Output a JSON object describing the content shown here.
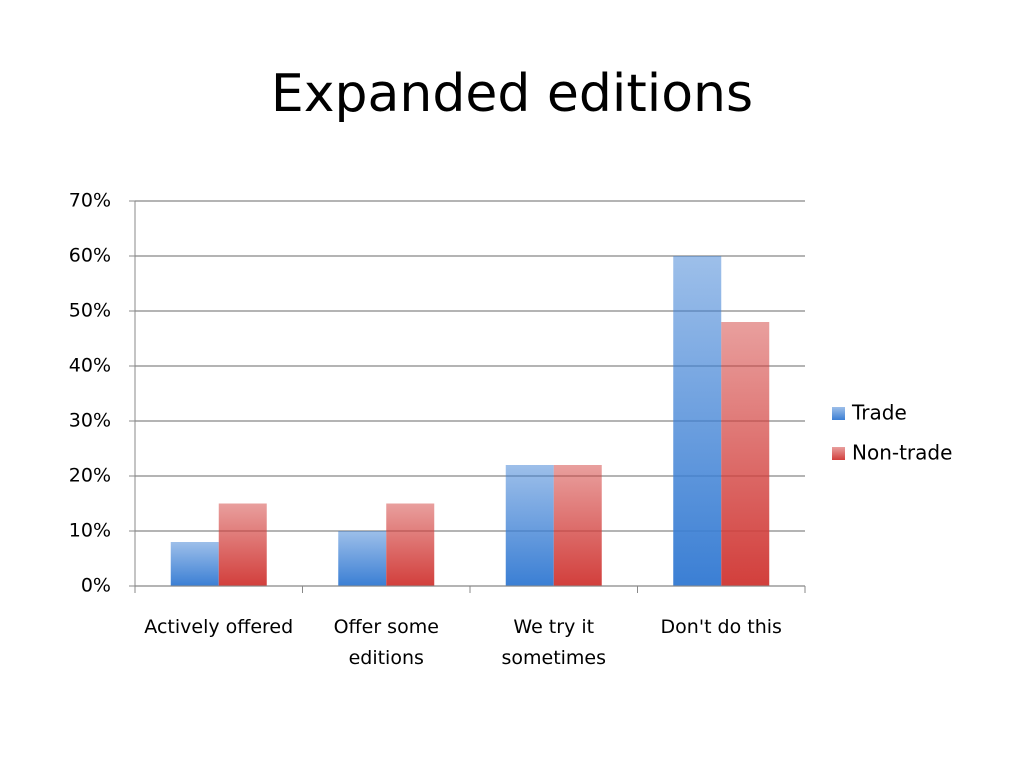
{
  "chart_data": {
    "type": "bar",
    "title": "Expanded editions",
    "categories": [
      "Actively offered",
      "Offer some editions",
      "We try it sometimes",
      "Don't do this"
    ],
    "series": [
      {
        "name": "Trade",
        "color": "#3b7fd4",
        "values": [
          8,
          10,
          22,
          60
        ]
      },
      {
        "name": "Non-trade",
        "color": "#d23f3c",
        "values": [
          15,
          15,
          22,
          48
        ]
      }
    ],
    "ylim": [
      0,
      70
    ],
    "yticks": [
      {
        "value": 0,
        "label": "0%"
      },
      {
        "value": 10,
        "label": "10%"
      },
      {
        "value": 20,
        "label": "20%"
      },
      {
        "value": 30,
        "label": "30%"
      },
      {
        "value": 40,
        "label": "40%"
      },
      {
        "value": 50,
        "label": "50%"
      },
      {
        "value": 60,
        "label": "60%"
      },
      {
        "value": 70,
        "label": "70%"
      }
    ],
    "grid": true,
    "legend": "right"
  }
}
